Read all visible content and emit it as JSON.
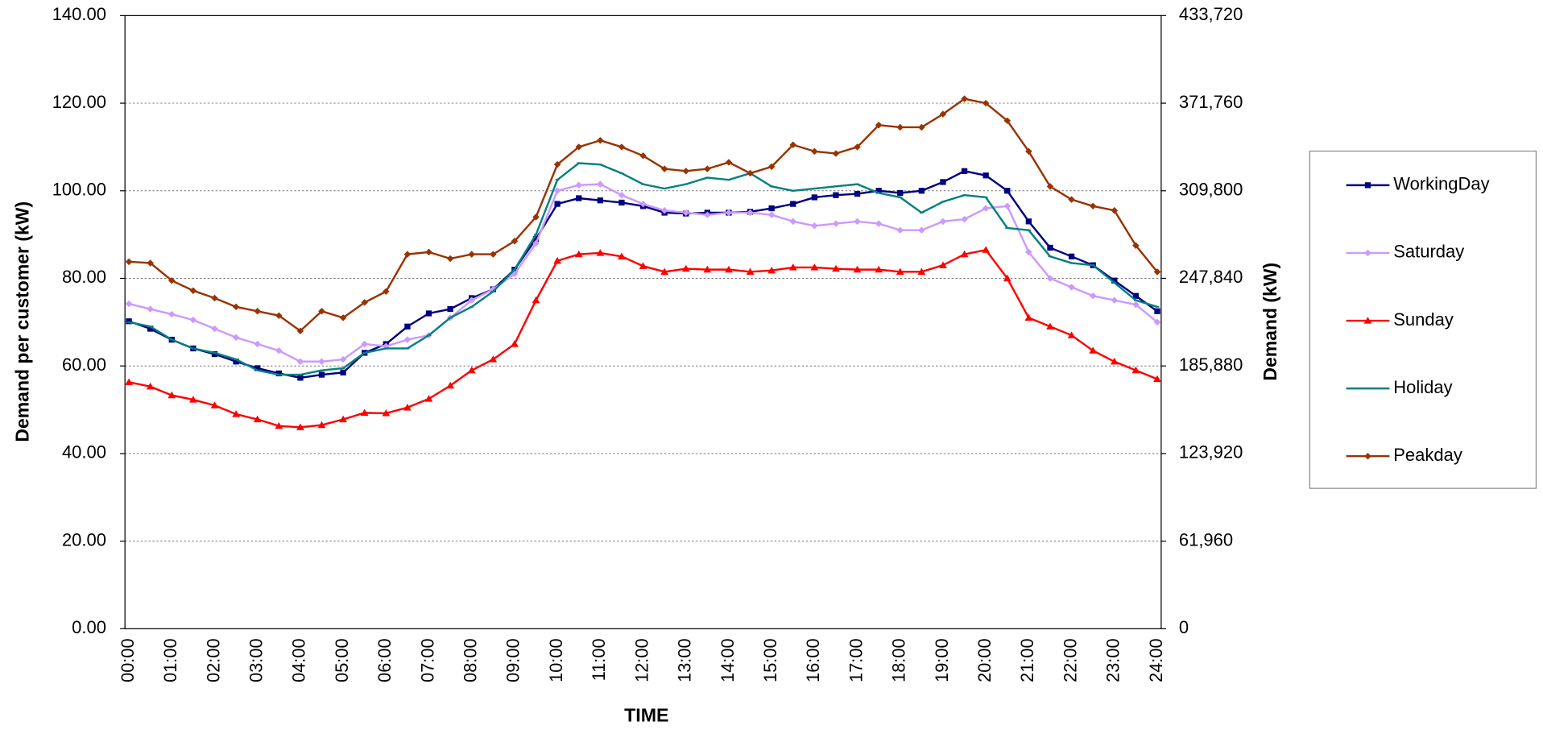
{
  "chart_data": {
    "type": "line",
    "y_label": "Demand per customer (kW)",
    "y2_label": "Demand (kW)",
    "x_label": "TIME",
    "categories": [
      "00:00",
      null,
      "01:00",
      null,
      "02:00",
      null,
      "03:00",
      null,
      "04:00",
      null,
      "05:00",
      null,
      "06:00",
      null,
      "07:00",
      null,
      "08:00",
      null,
      "09:00",
      null,
      "10:00",
      null,
      "11:00",
      null,
      "12:00",
      null,
      "13:00",
      null,
      "14:00",
      null,
      "15:00",
      null,
      "16:00",
      null,
      "17:00",
      null,
      "18:00",
      null,
      "19:00",
      null,
      "20:00",
      null,
      "21:00",
      null,
      "22:00",
      null,
      "23:00",
      null,
      "24:00"
    ],
    "series": [
      {
        "name": "WorkingDay",
        "color": "#000080",
        "marker": "square",
        "values": [
          70.2,
          68.5,
          66,
          64,
          62.7,
          61,
          59.5,
          58.3,
          57.3,
          58,
          58.5,
          63,
          65,
          69,
          72,
          73,
          75.5,
          77.5,
          82,
          89,
          97,
          98.3,
          97.8,
          97.3,
          96.5,
          95,
          94.8,
          95,
          95,
          95.2,
          96,
          97,
          98.5,
          99,
          99.3,
          100,
          99.5,
          100,
          102,
          104.5,
          103.5,
          100,
          93,
          87,
          85,
          83,
          79.5,
          76,
          72.5
        ]
      },
      {
        "name": "Saturday",
        "color": "#cc99ff",
        "marker": "diamond",
        "values": [
          74.2,
          73,
          71.8,
          70.5,
          68.5,
          66.5,
          65,
          63.5,
          61,
          61,
          61.5,
          65,
          64.5,
          66,
          67,
          71,
          75,
          77.5,
          81,
          88,
          100,
          101.3,
          101.5,
          99,
          97,
          95.5,
          95,
          94.5,
          95,
          95,
          94.5,
          93,
          92,
          92.5,
          93,
          92.5,
          91,
          91,
          93,
          93.5,
          96,
          96.5,
          86,
          80,
          78,
          76,
          75,
          74,
          70
        ]
      },
      {
        "name": "Sunday",
        "color": "#ff0000",
        "marker": "triangle",
        "values": [
          56.3,
          55.3,
          53.3,
          52.3,
          51,
          49,
          47.8,
          46.3,
          46,
          46.5,
          47.8,
          49.3,
          49.2,
          50.5,
          52.5,
          55.5,
          59,
          61.5,
          65,
          75,
          84,
          85.5,
          85.8,
          85,
          82.8,
          81.5,
          82.2,
          82,
          82,
          81.5,
          81.8,
          82.5,
          82.5,
          82.2,
          82,
          82,
          81.5,
          81.5,
          83,
          85.5,
          86.5,
          80,
          71,
          69,
          67,
          63.5,
          61,
          59,
          57
        ]
      },
      {
        "name": "Holiday",
        "color": "#008080",
        "marker": "dash",
        "values": [
          70,
          69,
          66,
          64,
          63,
          61.5,
          59,
          58,
          58,
          59,
          59.5,
          63,
          64,
          64,
          67,
          71,
          73.5,
          77,
          82,
          90,
          102.5,
          106.3,
          106,
          104,
          101.5,
          100.5,
          101.5,
          103,
          102.5,
          104,
          101,
          100,
          100.5,
          101,
          101.5,
          99.5,
          98.5,
          95,
          97.5,
          99,
          98.5,
          91.5,
          91,
          85,
          83.5,
          83,
          79,
          75,
          73.5
        ]
      },
      {
        "name": "Peakday",
        "color": "#993300",
        "marker": "diamond",
        "values": [
          83.8,
          83.5,
          79.5,
          77.2,
          75.5,
          73.5,
          72.5,
          71.5,
          68,
          72.5,
          71,
          74.5,
          77,
          85.5,
          86,
          84.5,
          85.5,
          85.5,
          88.5,
          94,
          106,
          110,
          111.5,
          110,
          108,
          105,
          104.5,
          105,
          106.5,
          104,
          105.5,
          110.5,
          109,
          108.5,
          110,
          115,
          114.5,
          114.5,
          117.5,
          121,
          120,
          116,
          109,
          101,
          98,
          96.5,
          95.5,
          87.5,
          81.5
        ]
      }
    ],
    "ylim": [
      0,
      140
    ],
    "yticks": [
      {
        "value": 0,
        "label": "0.00"
      },
      {
        "value": 20,
        "label": "20.00"
      },
      {
        "value": 40,
        "label": "40.00"
      },
      {
        "value": 60,
        "label": "60.00"
      },
      {
        "value": 80,
        "label": "80.00"
      },
      {
        "value": 100,
        "label": "100.00"
      },
      {
        "value": 120,
        "label": "120.00"
      },
      {
        "value": 140,
        "label": "140.00"
      }
    ],
    "y2lim": [
      0,
      433720
    ],
    "y2ticks": [
      0,
      {
        "value": 61960,
        "label": "61,960"
      },
      {
        "value": 123920,
        "label": "123,920"
      },
      {
        "value": 185880,
        "label": "185,880"
      },
      {
        "value": 247840,
        "label": "247,840"
      },
      {
        "value": 309800,
        "label": "309,800"
      },
      {
        "value": 371760,
        "label": "371,760"
      },
      {
        "value": 433720,
        "label": "433,720"
      }
    ],
    "grid": true,
    "legend": "right"
  }
}
